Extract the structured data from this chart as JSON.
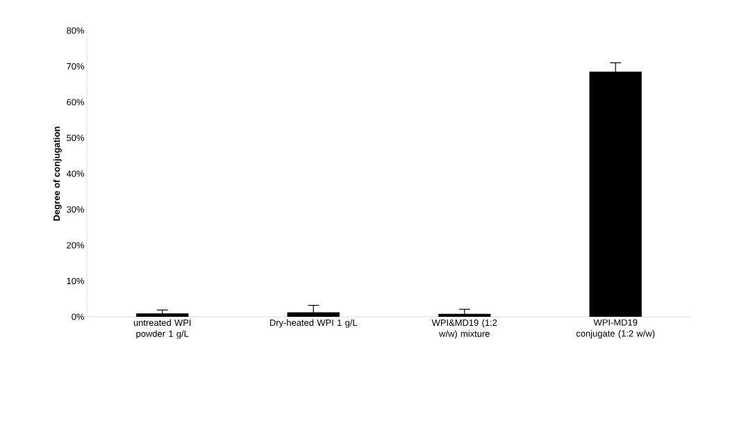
{
  "chart_data": {
    "type": "bar",
    "ylabel": "Degree of conjugation",
    "categories": [
      "untreated WPI powder 1 g/L",
      "Dry-heated WPI 1 g/L",
      "WPI&MD19 (1:2 w/w) mixture",
      "WPI-MD19 conjugate (1:2 w/w)"
    ],
    "values": [
      0.9,
      1.2,
      0.8,
      68.5
    ],
    "errors": [
      1.0,
      2.0,
      1.3,
      2.5
    ],
    "color": "#000000",
    "ylim": [
      0,
      80
    ],
    "yticks": [
      {
        "value": 0,
        "label": "0%"
      },
      {
        "value": 10,
        "label": "10%"
      },
      {
        "value": 20,
        "label": "20%"
      },
      {
        "value": 30,
        "label": "30%"
      },
      {
        "value": 40,
        "label": "40%"
      },
      {
        "value": 50,
        "label": "50%"
      },
      {
        "value": 60,
        "label": "60%"
      },
      {
        "value": 70,
        "label": "70%"
      },
      {
        "value": 80,
        "label": "80%"
      }
    ],
    "grid": false
  }
}
